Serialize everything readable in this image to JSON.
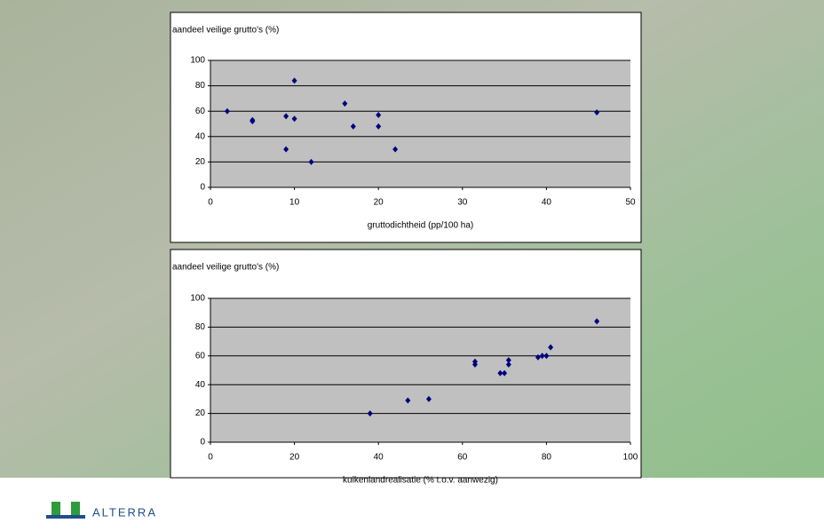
{
  "chart_data": [
    {
      "type": "scatter",
      "title": "aandeel veilige grutto's (%)",
      "x_label": "gruttodichtheid (pp/100 ha)",
      "xlim": [
        0,
        50
      ],
      "xticks": [
        0,
        10,
        20,
        30,
        40,
        50
      ],
      "ylim": [
        0,
        100
      ],
      "yticks": [
        0,
        20,
        40,
        60,
        80,
        100
      ],
      "grid": true,
      "series": [
        {
          "color": "#000080",
          "x": [
            2,
            5,
            5,
            9,
            10,
            9,
            10,
            12,
            16,
            17,
            20,
            20,
            22,
            46
          ],
          "values": [
            60,
            53,
            52,
            56,
            54,
            30,
            84,
            20,
            66,
            48,
            57,
            48,
            30,
            59
          ]
        }
      ]
    },
    {
      "type": "scatter",
      "title": "aandeel veilige grutto's (%)",
      "x_label": "kuikenlandrealisatie (% t.o.v. aanwezig)",
      "xlim": [
        0,
        100
      ],
      "xticks": [
        0,
        20,
        40,
        60,
        80,
        100
      ],
      "ylim": [
        0,
        100
      ],
      "yticks": [
        0,
        20,
        40,
        60,
        80,
        100
      ],
      "grid": true,
      "series": [
        {
          "color": "#000080",
          "x": [
            38,
            47,
            52,
            63,
            63,
            69,
            70,
            71,
            71,
            78,
            79,
            80,
            81,
            92
          ],
          "values": [
            20,
            29,
            30,
            56,
            54,
            48,
            48,
            57,
            54,
            59,
            60,
            60,
            66,
            84
          ]
        }
      ]
    }
  ],
  "logo": {
    "text": "ALTERRA"
  }
}
